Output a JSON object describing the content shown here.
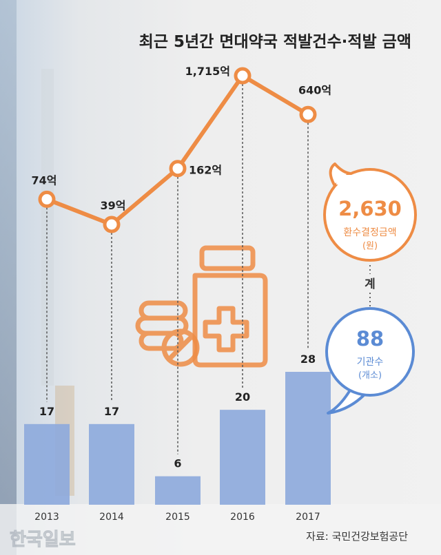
{
  "title": "최근 5년간 면대약국 적발건수·적발 금액",
  "source": "자료: 국민건강보험공단",
  "watermark": "한국일보",
  "colors": {
    "line": "#ee8c45",
    "bar": "#8eaadc",
    "bubble_orange": "#ee8c45",
    "bubble_blue": "#5b8bd4"
  },
  "bubble_amount": {
    "value": "2,630",
    "label": "환수결정금액",
    "unit": "(원)"
  },
  "connector_label": "계",
  "bubble_count": {
    "value": "88",
    "label": "기관수",
    "unit": "(개소)"
  },
  "chart_data": {
    "type": "bar",
    "categories": [
      "2013",
      "2014",
      "2015",
      "2016",
      "2017"
    ],
    "series": [
      {
        "values": [
          17,
          17,
          6,
          20,
          28
        ],
        "labels": [
          "17",
          "17",
          "6",
          "20",
          "28"
        ]
      },
      {
        "values": [
          74,
          39,
          162,
          1715,
          640
        ],
        "labels": [
          "74억",
          "39억",
          "162억",
          "1,715억",
          "640억"
        ]
      }
    ],
    "grid": false,
    "legend": "none"
  },
  "icons": [
    "pill-icon",
    "medicine-bottle-icon"
  ]
}
